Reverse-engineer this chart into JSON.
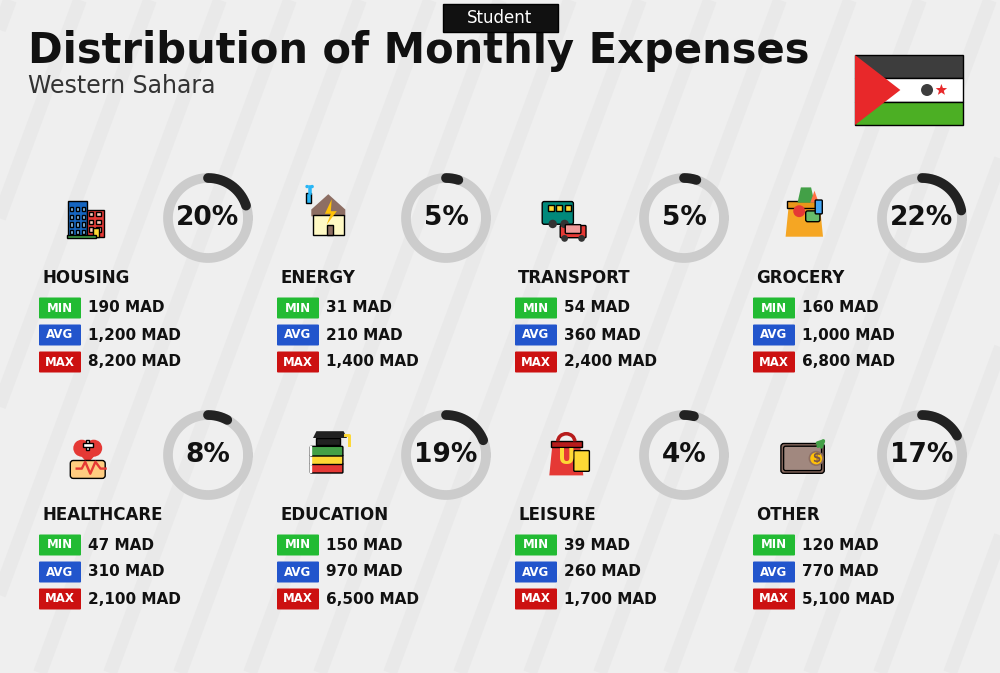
{
  "title": "Distribution of Monthly Expenses",
  "subtitle": "Western Sahara",
  "header_label": "Student",
  "bg_color": "#efefef",
  "categories": [
    {
      "name": "HOUSING",
      "pct": 20,
      "min_val": "190 MAD",
      "avg_val": "1,200 MAD",
      "max_val": "8,200 MAD",
      "row": 0,
      "col": 0
    },
    {
      "name": "ENERGY",
      "pct": 5,
      "min_val": "31 MAD",
      "avg_val": "210 MAD",
      "max_val": "1,400 MAD",
      "row": 0,
      "col": 1
    },
    {
      "name": "TRANSPORT",
      "pct": 5,
      "min_val": "54 MAD",
      "avg_val": "360 MAD",
      "max_val": "2,400 MAD",
      "row": 0,
      "col": 2
    },
    {
      "name": "GROCERY",
      "pct": 22,
      "min_val": "160 MAD",
      "avg_val": "1,000 MAD",
      "max_val": "6,800 MAD",
      "row": 0,
      "col": 3
    },
    {
      "name": "HEALTHCARE",
      "pct": 8,
      "min_val": "47 MAD",
      "avg_val": "310 MAD",
      "max_val": "2,100 MAD",
      "row": 1,
      "col": 0
    },
    {
      "name": "EDUCATION",
      "pct": 19,
      "min_val": "150 MAD",
      "avg_val": "970 MAD",
      "max_val": "6,500 MAD",
      "row": 1,
      "col": 1
    },
    {
      "name": "LEISURE",
      "pct": 4,
      "min_val": "39 MAD",
      "avg_val": "260 MAD",
      "max_val": "1,700 MAD",
      "row": 1,
      "col": 2
    },
    {
      "name": "OTHER",
      "pct": 17,
      "min_val": "120 MAD",
      "avg_val": "770 MAD",
      "max_val": "5,100 MAD",
      "row": 1,
      "col": 3
    }
  ],
  "min_color": "#22bb33",
  "avg_color": "#2255cc",
  "max_color": "#cc1111",
  "ring_color": "#222222",
  "ring_bg_color": "#cccccc",
  "title_fontsize": 30,
  "subtitle_fontsize": 17,
  "pct_fontsize": 19,
  "val_fontsize": 11,
  "cat_fontsize": 12
}
